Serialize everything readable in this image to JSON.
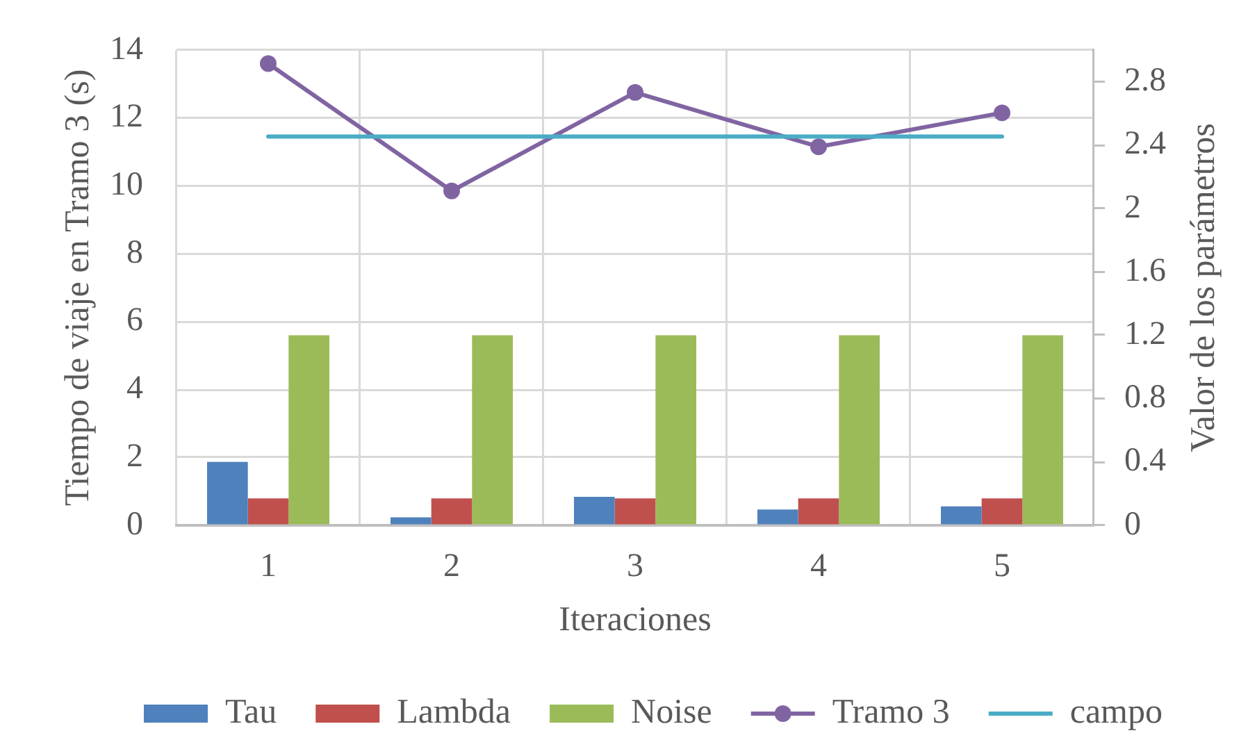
{
  "chart_data": {
    "type": "bar",
    "xlabel": "Iteraciones",
    "ylabel": "Tiempo de viaje en Tramo 3 (s)",
    "y2label": "Valor de los parámetros",
    "categories": [
      "1",
      "2",
      "3",
      "4",
      "5"
    ],
    "series": [
      {
        "name": "Tau",
        "color": "#4f81bd",
        "axis": "y2",
        "values": [
          0.4,
          0.05,
          0.18,
          0.1,
          0.12
        ]
      },
      {
        "name": "Lambda",
        "color": "#c0504d",
        "axis": "y2",
        "values": [
          0.17,
          0.17,
          0.17,
          0.17,
          0.17
        ]
      },
      {
        "name": "Noise",
        "color": "#9bbb59",
        "axis": "y2",
        "values": [
          1.2,
          1.2,
          1.2,
          1.2,
          1.2
        ]
      },
      {
        "name": "Tramo 3",
        "type": "line",
        "color": "#8064a2",
        "marker": "circle",
        "values": [
          13.6,
          9.85,
          12.75,
          11.15,
          12.15
        ]
      },
      {
        "name": "campo",
        "type": "line",
        "color": "#4bacc6",
        "marker": "none",
        "values": [
          11.45,
          11.45,
          11.45,
          11.45,
          11.45
        ]
      }
    ],
    "ylim": [
      0,
      14
    ],
    "yticks": [
      0,
      2,
      4,
      6,
      8,
      10,
      12,
      14
    ],
    "y2lim": [
      0,
      3
    ],
    "y2ticks": [
      0,
      0.4,
      0.8,
      1.2,
      1.6,
      2,
      2.4,
      2.8
    ],
    "grid": true,
    "legend": "bottom"
  }
}
